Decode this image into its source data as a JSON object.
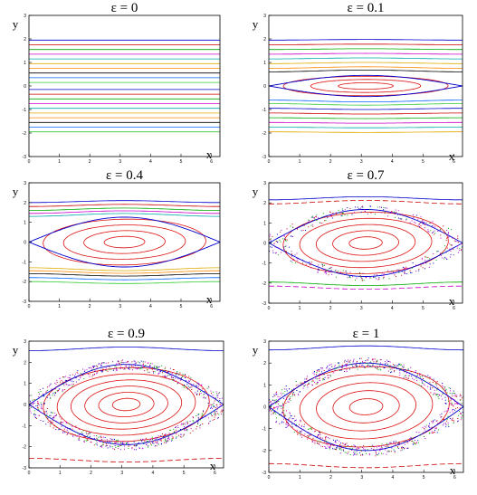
{
  "figure": {
    "background": "#ffffff",
    "frame_color": "#000000"
  },
  "chart_data": [
    {
      "type": "line",
      "title": "ε = 0",
      "epsilon": 0,
      "xlabel": "x",
      "ylabel": "y",
      "xlim": [
        0,
        6.28
      ],
      "ylim": [
        -3,
        3
      ],
      "xticks": [
        "0",
        "1",
        "2",
        "3",
        "4",
        "5",
        "6"
      ],
      "yticks": [
        "3",
        "2",
        "1",
        "0",
        "-1",
        "-2",
        "-3"
      ],
      "grid": false,
      "levels": [
        1.95,
        1.75,
        1.55,
        1.35,
        1.15,
        0.95,
        0.75,
        0.55,
        0.35,
        0.15,
        -0.15,
        -0.35,
        -0.55,
        -0.75,
        -0.95,
        -1.15,
        -1.35,
        -1.55,
        -1.75,
        -1.95
      ]
    },
    {
      "type": "line",
      "title": "ε = 0.1",
      "epsilon": 0.1,
      "xlabel": "x",
      "ylabel": "y",
      "xlim": [
        0,
        6.28
      ],
      "ylim": [
        -3,
        3
      ],
      "xticks": [
        "0",
        "1",
        "2",
        "3",
        "4",
        "5",
        "6"
      ],
      "yticks": [
        "3",
        "2",
        "1",
        "0",
        "-1",
        "-2",
        "-3"
      ],
      "grid": false,
      "separatrix_half_width": 0.45,
      "islands": [
        0.12,
        0.24,
        0.36
      ],
      "levels": [
        1.95,
        1.75,
        1.55,
        1.35,
        1.15,
        0.95,
        0.75,
        0.6,
        -0.6,
        -0.75,
        -0.95,
        -1.15,
        -1.35,
        -1.55,
        -1.75,
        -1.95
      ]
    },
    {
      "type": "line",
      "title": "ε = 0.4",
      "epsilon": 0.4,
      "xlabel": "x",
      "ylabel": "y",
      "xlim": [
        0,
        6.28
      ],
      "ylim": [
        -3,
        3
      ],
      "xticks": [
        "0",
        "1",
        "2",
        "3",
        "4",
        "5",
        "6"
      ],
      "yticks": [
        "3",
        "2",
        "1",
        "0",
        "-1",
        "-2",
        "-3"
      ],
      "grid": false,
      "separatrix_half_width": 1.26,
      "islands": [
        0.25,
        0.5,
        0.75,
        1.0
      ],
      "levels": [
        2.0,
        1.8,
        1.6,
        1.45,
        1.3,
        -1.3,
        -1.45,
        -1.6,
        -1.8,
        -2.0
      ]
    },
    {
      "type": "scatter",
      "title": "ε = 0.7",
      "epsilon": 0.7,
      "xlabel": "x",
      "ylabel": "y",
      "xlim": [
        0,
        6.28
      ],
      "ylim": [
        -3,
        3
      ],
      "xticks": [
        "0",
        "1",
        "2",
        "3",
        "4",
        "5",
        "6"
      ],
      "yticks": [
        "3",
        "2",
        "1",
        "0",
        "-1",
        "-2",
        "-3"
      ],
      "grid": false,
      "separatrix_half_width": 1.67,
      "islands": [
        0.25,
        0.5,
        0.75,
        1.0,
        1.25
      ],
      "levels": [
        2.15,
        1.95,
        -1.95,
        -2.15
      ],
      "chaotic_layer": true
    },
    {
      "type": "scatter",
      "title": "ε = 0.9",
      "epsilon": 0.9,
      "xlabel": "x",
      "ylabel": "y",
      "xlim": [
        0,
        6.28
      ],
      "ylim": [
        -3,
        3
      ],
      "xticks": [
        "0",
        "1",
        "2",
        "3",
        "4",
        "5",
        "6"
      ],
      "yticks": [
        "3",
        "2",
        "1",
        "0",
        "-1",
        "-2",
        "-3"
      ],
      "grid": false,
      "separatrix_half_width": 1.9,
      "islands": [
        0.2,
        0.4,
        0.6,
        0.8,
        1.0,
        1.2
      ],
      "levels": [
        2.55,
        -2.55
      ],
      "chaotic_layer": true
    },
    {
      "type": "scatter",
      "title": "ε = 1",
      "epsilon": 1,
      "xlabel": "x",
      "ylabel": "y",
      "xlim": [
        0,
        6.28
      ],
      "ylim": [
        -3,
        3
      ],
      "xticks": [
        "0",
        "1",
        "2",
        "3",
        "4",
        "5",
        "6"
      ],
      "yticks": [
        "3",
        "2",
        "1",
        "0",
        "-1",
        "-2",
        "-3"
      ],
      "grid": false,
      "separatrix_half_width": 2.0,
      "islands": [
        0.2,
        0.4,
        0.6,
        0.8,
        1.0
      ],
      "levels": [
        2.6,
        -2.6
      ],
      "chaotic_layer": true
    }
  ],
  "palette": [
    "#0000cc",
    "#cc0000",
    "#00aa00",
    "#cc00cc",
    "#00aaaa",
    "#ddaa00",
    "#ff8800",
    "#000000",
    "#0066ff",
    "#33cc33"
  ],
  "island_color": "#dd1111",
  "chaos_colors": [
    "#cc00cc",
    "#0000cc",
    "#cc0000",
    "#00aa00",
    "#9900cc"
  ]
}
